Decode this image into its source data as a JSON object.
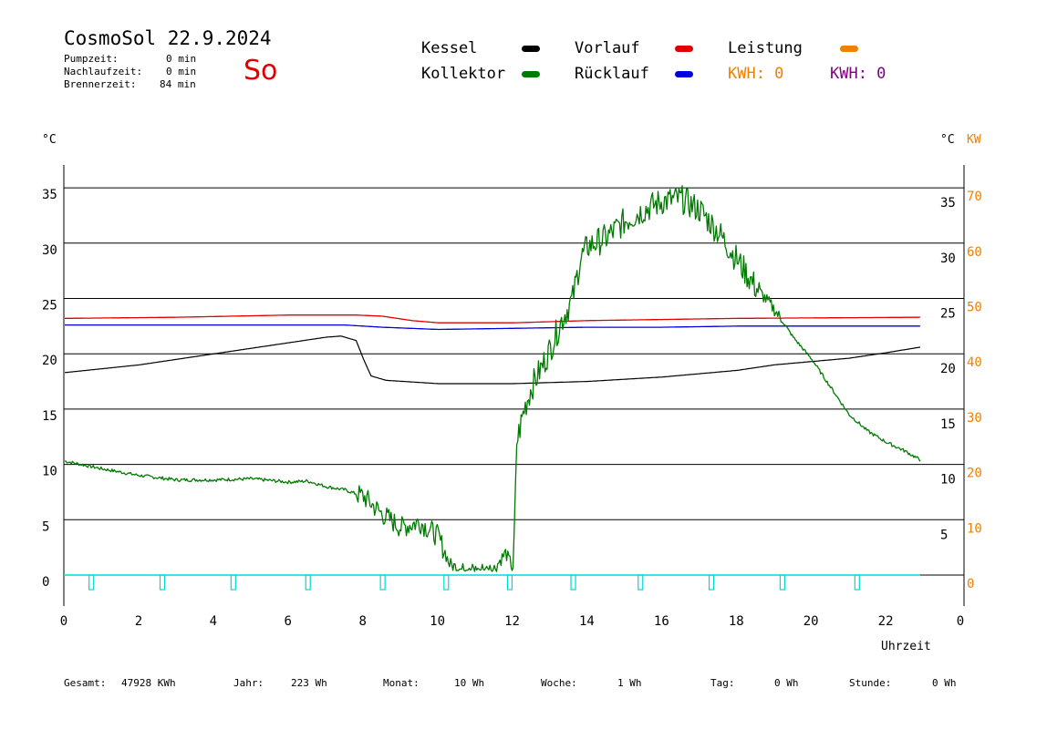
{
  "header": {
    "title": "CosmoSol 22.9.2024",
    "day": "So",
    "stats": [
      {
        "label": "Pumpzeit:",
        "value": "0 min"
      },
      {
        "label": "Nachlaufzeit:",
        "value": "0 min"
      },
      {
        "label": "Brennerzeit:",
        "value": "84 min"
      }
    ]
  },
  "legend": {
    "kessel": "Kessel",
    "kollektor": "Kollektor",
    "vorlauf": "Vorlauf",
    "ruecklauf": "Rücklauf",
    "leistung": "Leistung",
    "kwh1": "KWH: 0",
    "kwh2": "KWH: 0"
  },
  "colors": {
    "kessel": "#000000",
    "kollektor": "#007a00",
    "vorlauf": "#e00000",
    "ruecklauf": "#0000e0",
    "leistung": "#f08000",
    "kwh2": "#800080",
    "pump": "#00d8d8"
  },
  "axis_units": {
    "left": "°C",
    "right_c": "°C",
    "right_kw": "KW"
  },
  "footer": [
    {
      "label": "Gesamt:",
      "value": "47928 KWh"
    },
    {
      "label": "Jahr:",
      "value": "223 Wh"
    },
    {
      "label": "Monat:",
      "value": "10 Wh"
    },
    {
      "label": "Woche:",
      "value": "1 Wh"
    },
    {
      "label": "Tag:",
      "value": "0 Wh"
    },
    {
      "label": "Stunde:",
      "value": "0 Wh"
    }
  ],
  "chart_data": {
    "type": "line",
    "xlabel": "Uhrzeit",
    "x_ticks": [
      "0",
      "2",
      "4",
      "6",
      "8",
      "10",
      "12",
      "14",
      "16",
      "18",
      "20",
      "22",
      "0"
    ],
    "y_ticks_left": [
      "35",
      "30",
      "25",
      "20",
      "15",
      "10",
      "5",
      "0"
    ],
    "y_ticks_right": [
      "35",
      "30",
      "25",
      "20",
      "15",
      "10",
      "5"
    ],
    "y_ticks_kw": [
      "70",
      "60",
      "50",
      "40",
      "30",
      "20",
      "10",
      "0"
    ],
    "xlim": [
      0,
      24
    ],
    "ylim": [
      -2.5,
      37.5
    ],
    "grid": true,
    "series": [
      {
        "name": "Kessel",
        "color": "#000000",
        "points": [
          [
            0,
            18.3
          ],
          [
            2,
            19
          ],
          [
            4,
            20
          ],
          [
            6,
            21
          ],
          [
            7,
            21.5
          ],
          [
            7.4,
            21.6
          ],
          [
            7.8,
            21.2
          ],
          [
            8,
            19.5
          ],
          [
            8.2,
            18
          ],
          [
            8.6,
            17.6
          ],
          [
            10,
            17.3
          ],
          [
            12,
            17.3
          ],
          [
            14,
            17.5
          ],
          [
            16,
            17.9
          ],
          [
            18,
            18.5
          ],
          [
            19,
            19
          ],
          [
            20,
            19.3
          ],
          [
            21,
            19.6
          ],
          [
            22,
            20.1
          ],
          [
            22.9,
            20.6
          ]
        ]
      },
      {
        "name": "Vorlauf",
        "color": "#e00000",
        "points": [
          [
            0,
            23.2
          ],
          [
            3,
            23.3
          ],
          [
            6,
            23.5
          ],
          [
            7.8,
            23.5
          ],
          [
            8.5,
            23.4
          ],
          [
            9.3,
            23
          ],
          [
            10,
            22.8
          ],
          [
            11,
            22.8
          ],
          [
            12,
            22.8
          ],
          [
            13,
            22.9
          ],
          [
            14,
            23
          ],
          [
            16,
            23.1
          ],
          [
            18,
            23.2
          ],
          [
            22.9,
            23.3
          ]
        ]
      },
      {
        "name": "Rücklauf",
        "color": "#0000e0",
        "points": [
          [
            0,
            22.6
          ],
          [
            2,
            22.6
          ],
          [
            4,
            22.6
          ],
          [
            6,
            22.6
          ],
          [
            7.5,
            22.6
          ],
          [
            8.5,
            22.4
          ],
          [
            10,
            22.2
          ],
          [
            12,
            22.3
          ],
          [
            14,
            22.4
          ],
          [
            16,
            22.4
          ],
          [
            18,
            22.5
          ],
          [
            20,
            22.5
          ],
          [
            22.9,
            22.5
          ]
        ]
      },
      {
        "name": "Kollektor",
        "color": "#007a00",
        "points": [
          [
            0,
            10.3
          ],
          [
            1,
            9.6
          ],
          [
            2,
            9
          ],
          [
            3,
            8.6
          ],
          [
            4,
            8.6
          ],
          [
            5,
            8.7
          ],
          [
            6,
            8.4
          ],
          [
            6.5,
            8.5
          ],
          [
            7,
            8
          ],
          [
            7.5,
            7.7
          ],
          [
            8,
            7.1
          ],
          [
            8.5,
            5.5
          ],
          [
            9,
            4.3
          ],
          [
            9.5,
            4.8
          ],
          [
            10,
            3.5
          ],
          [
            10.3,
            1
          ],
          [
            10.6,
            0.5
          ],
          [
            11,
            0.5
          ],
          [
            11.5,
            0.6
          ],
          [
            11.8,
            2
          ],
          [
            11.95,
            1
          ],
          [
            12,
            0.3
          ],
          [
            12.1,
            12
          ],
          [
            12.3,
            15
          ],
          [
            12.5,
            17
          ],
          [
            12.8,
            19
          ],
          [
            13,
            20.5
          ],
          [
            13.3,
            23
          ],
          [
            13.6,
            25
          ],
          [
            13.8,
            28.5
          ],
          [
            14,
            29.7
          ],
          [
            14.5,
            30.5
          ],
          [
            15,
            32
          ],
          [
            15.5,
            33
          ],
          [
            16,
            33.8
          ],
          [
            16.5,
            34
          ],
          [
            17,
            33
          ],
          [
            17.5,
            31
          ],
          [
            18,
            28.5
          ],
          [
            18.5,
            26
          ],
          [
            19,
            24
          ],
          [
            19.5,
            21.5
          ],
          [
            20,
            19.5
          ],
          [
            20.5,
            17
          ],
          [
            21,
            14.5
          ],
          [
            21.5,
            13
          ],
          [
            22,
            12
          ],
          [
            22.5,
            11.2
          ],
          [
            22.9,
            10.4
          ]
        ]
      }
    ],
    "pump_markers": [
      0.7,
      2.6,
      4.5,
      6.5,
      8.5,
      10.2,
      11.9,
      13.6,
      15.4,
      17.3,
      19.2,
      21.2
    ]
  }
}
